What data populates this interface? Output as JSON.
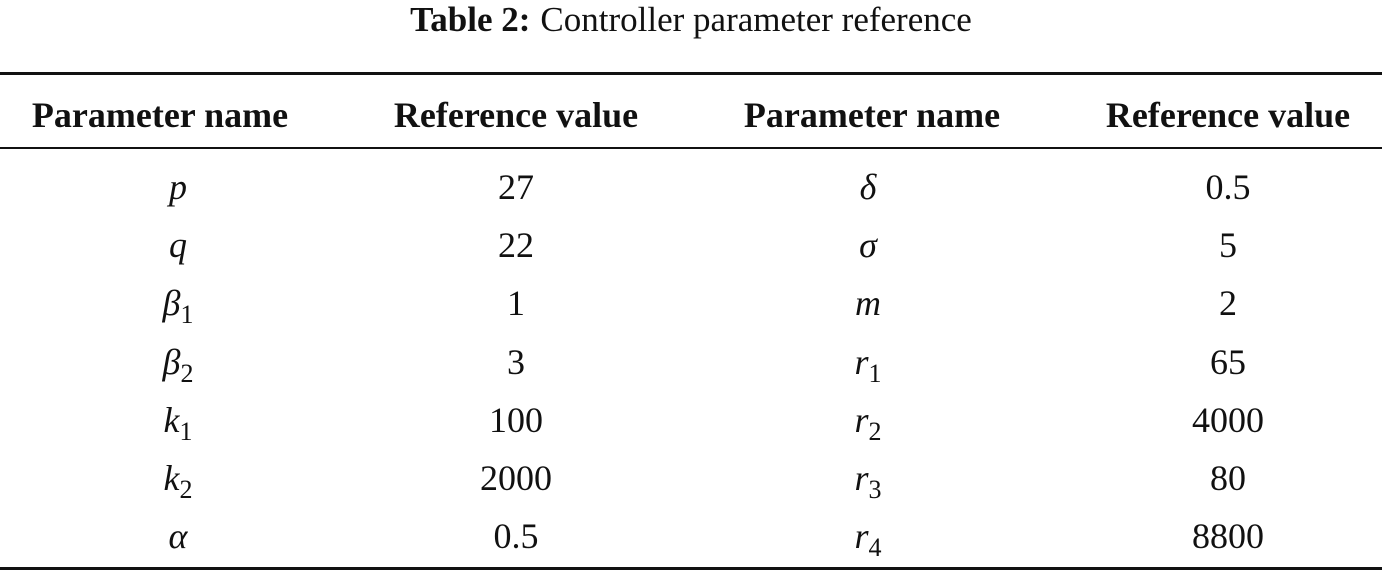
{
  "caption": {
    "label": "Table 2:",
    "title": "Controller parameter reference"
  },
  "table": {
    "headers": [
      "Parameter name",
      "Reference value",
      "Parameter name",
      "Reference value"
    ],
    "rows": [
      [
        {
          "symbol": "p"
        },
        27,
        {
          "symbol": "δ"
        },
        0.5
      ],
      [
        {
          "symbol": "q"
        },
        22,
        {
          "symbol": "σ"
        },
        5
      ],
      [
        {
          "symbol": "β",
          "sub": "1"
        },
        1,
        {
          "symbol": "m"
        },
        2
      ],
      [
        {
          "symbol": "β",
          "sub": "2"
        },
        3,
        {
          "symbol": "r",
          "sub": "1"
        },
        65
      ],
      [
        {
          "symbol": "k",
          "sub": "1"
        },
        100,
        {
          "symbol": "r",
          "sub": "2"
        },
        4000
      ],
      [
        {
          "symbol": "k",
          "sub": "2"
        },
        2000,
        {
          "symbol": "r",
          "sub": "3"
        },
        80
      ],
      [
        {
          "symbol": "α"
        },
        0.5,
        {
          "symbol": "r",
          "sub": "4"
        },
        8800
      ]
    ]
  }
}
